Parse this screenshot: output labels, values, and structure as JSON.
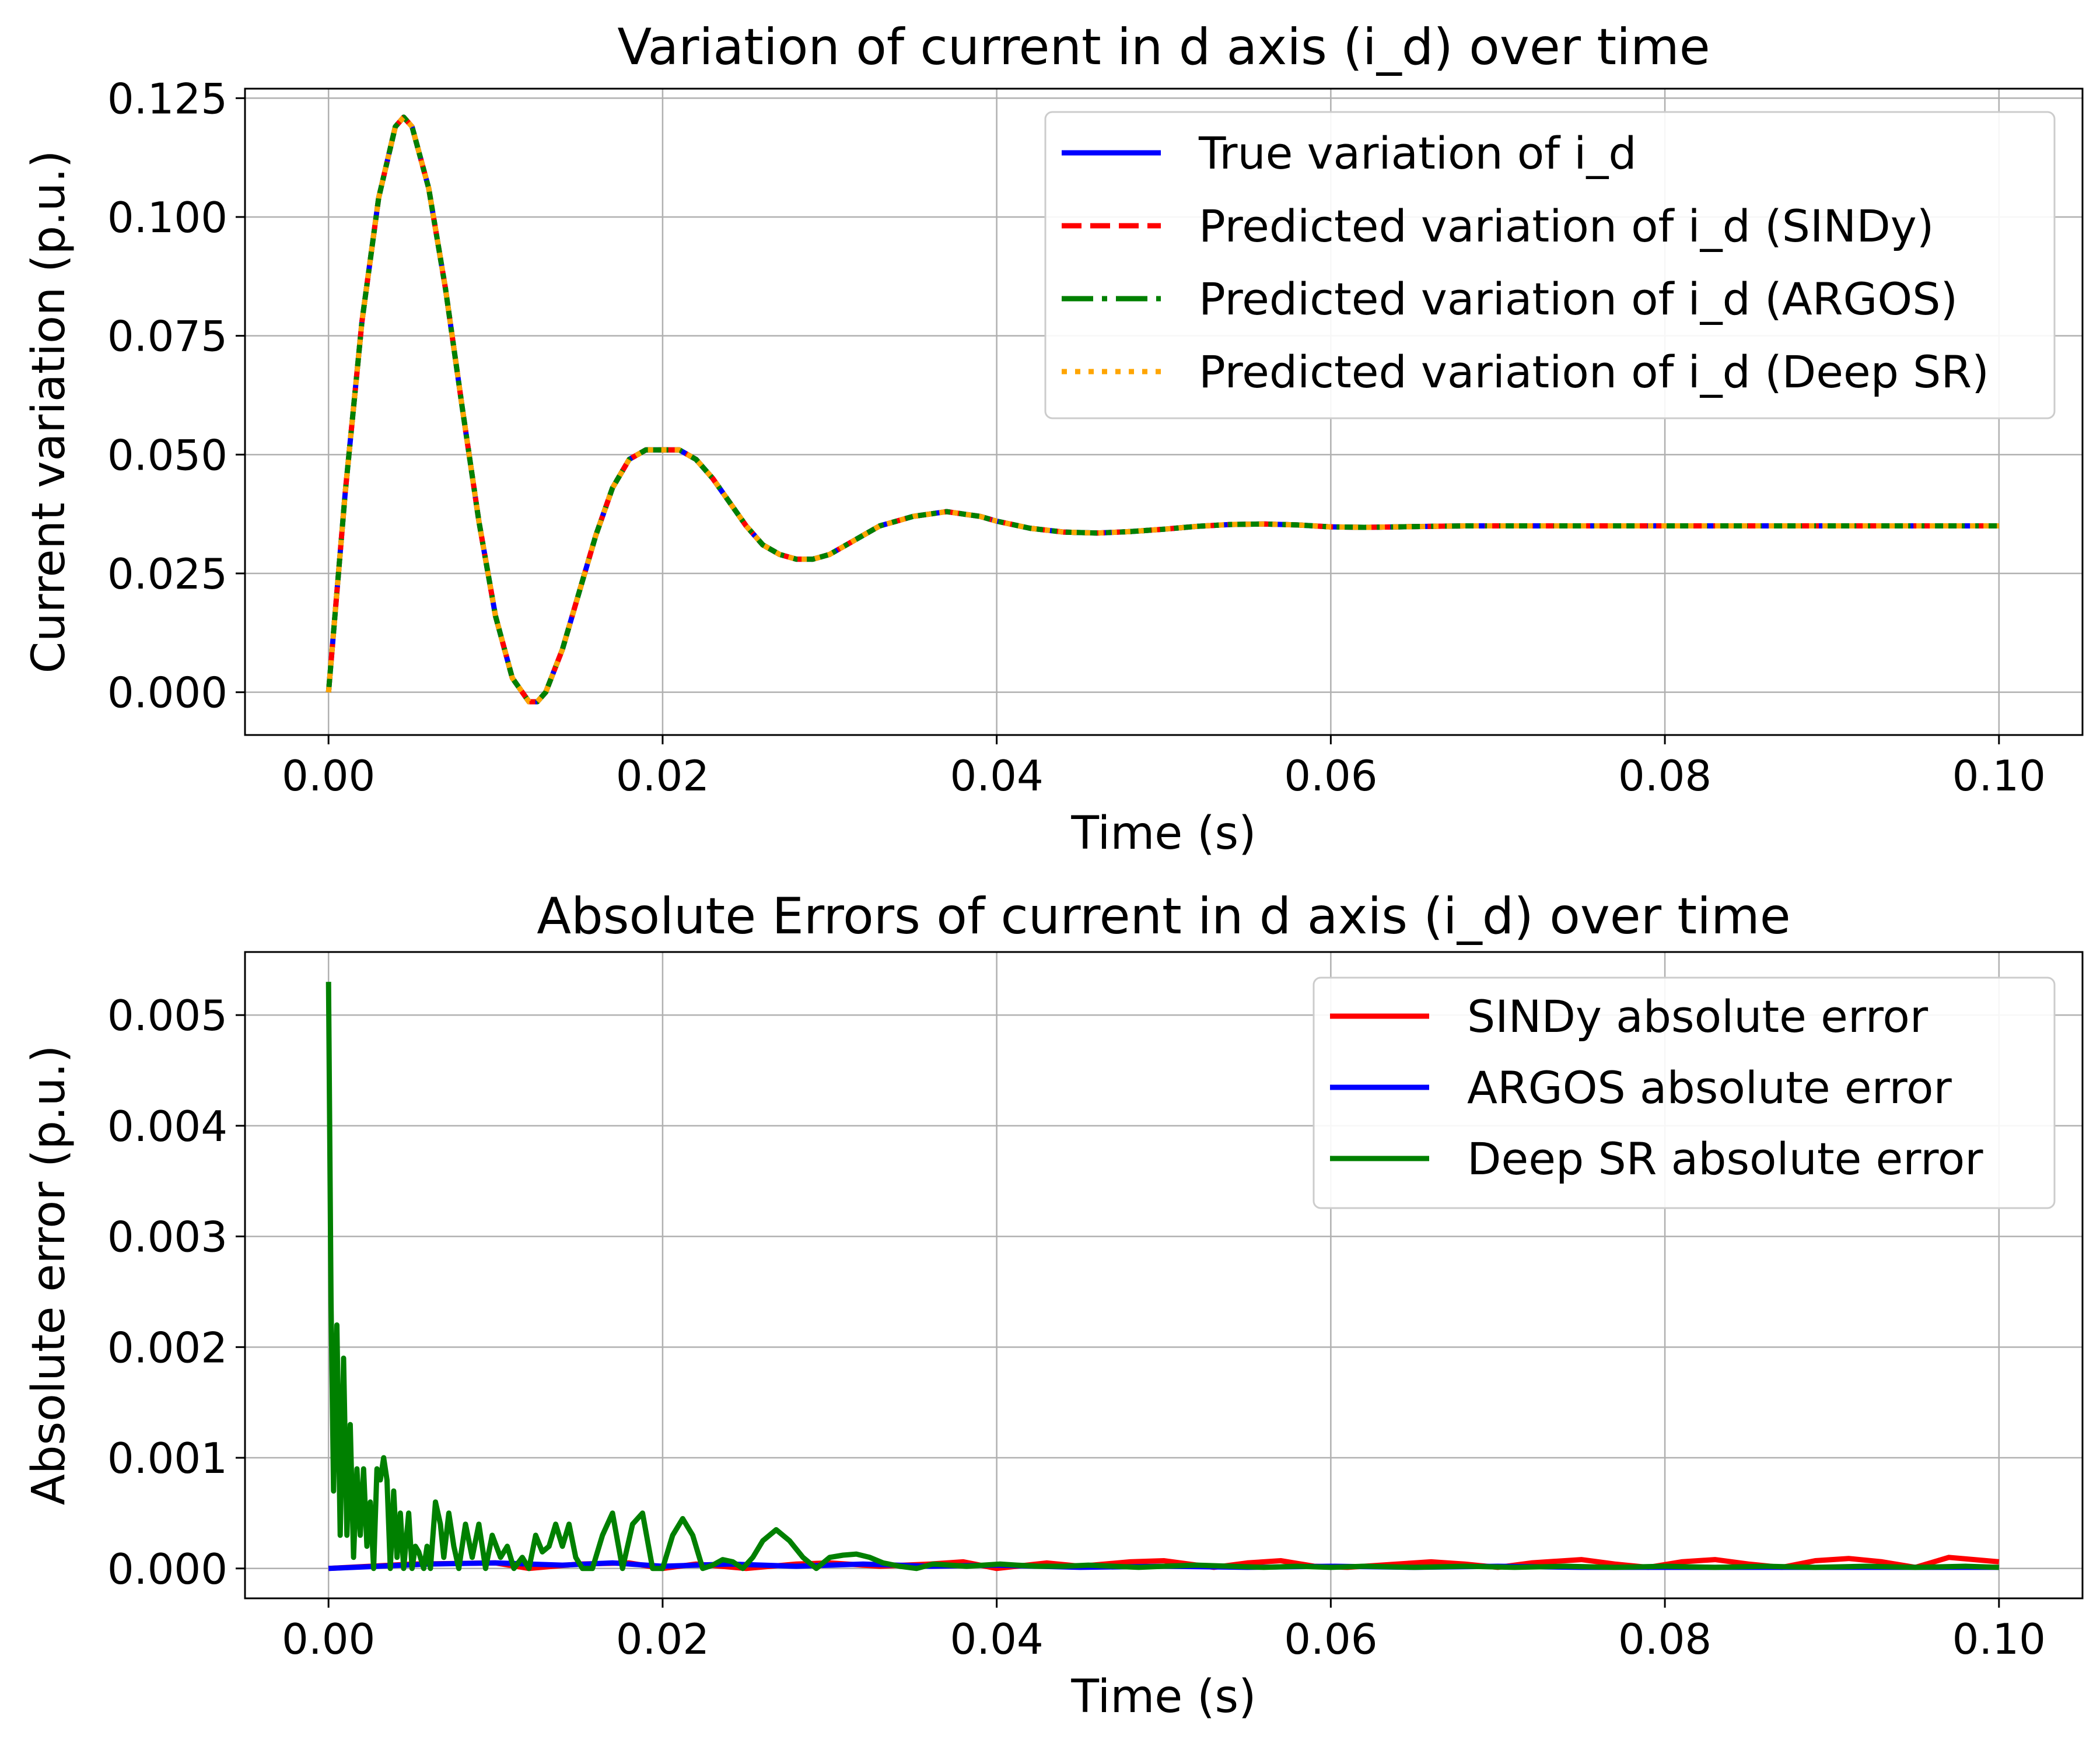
{
  "chart_data": [
    {
      "type": "line",
      "title": "Variation of current in d axis (i_d) over time",
      "xlabel": "Time (s)",
      "ylabel": "Current variation (p.u.)",
      "xlim": [
        -0.005,
        0.105
      ],
      "ylim": [
        -0.009,
        0.127
      ],
      "xticks": [
        "0.00",
        "0.02",
        "0.04",
        "0.06",
        "0.08",
        "0.10"
      ],
      "yticks": [
        "0.000",
        "0.025",
        "0.050",
        "0.075",
        "0.100",
        "0.125"
      ],
      "grid": true,
      "legend_position": "top-right",
      "series": [
        {
          "name": "True variation of i_d",
          "color": "#0000ff",
          "style": "solid",
          "x": [
            0,
            0.001,
            0.002,
            0.003,
            0.004,
            0.0045,
            0.005,
            0.006,
            0.007,
            0.008,
            0.009,
            0.01,
            0.011,
            0.012,
            0.0125,
            0.013,
            0.014,
            0.015,
            0.016,
            0.017,
            0.018,
            0.019,
            0.02,
            0.021,
            0.022,
            0.023,
            0.024,
            0.025,
            0.026,
            0.027,
            0.028,
            0.029,
            0.03,
            0.031,
            0.032,
            0.033,
            0.034,
            0.035,
            0.036,
            0.037,
            0.038,
            0.039,
            0.04,
            0.042,
            0.044,
            0.046,
            0.048,
            0.05,
            0.052,
            0.054,
            0.056,
            0.058,
            0.06,
            0.062,
            0.064,
            0.066,
            0.068,
            0.07,
            0.075,
            0.08,
            0.085,
            0.09,
            0.095,
            0.1
          ],
          "y": [
            0,
            0.042,
            0.078,
            0.104,
            0.119,
            0.121,
            0.119,
            0.106,
            0.085,
            0.06,
            0.036,
            0.016,
            0.003,
            -0.002,
            -0.002,
            0.0,
            0.009,
            0.021,
            0.033,
            0.043,
            0.049,
            0.051,
            0.051,
            0.051,
            0.049,
            0.045,
            0.04,
            0.035,
            0.031,
            0.029,
            0.028,
            0.028,
            0.029,
            0.031,
            0.033,
            0.035,
            0.036,
            0.037,
            0.0375,
            0.038,
            0.0375,
            0.037,
            0.036,
            0.0345,
            0.0337,
            0.0335,
            0.0338,
            0.0343,
            0.0349,
            0.0353,
            0.0354,
            0.0352,
            0.0348,
            0.0347,
            0.0348,
            0.0349,
            0.035,
            0.035,
            0.035,
            0.035,
            0.035,
            0.035,
            0.035,
            0.035
          ]
        },
        {
          "name": "Predicted variation of i_d (SINDy)",
          "color": "#ff0000",
          "style": "dashed"
        },
        {
          "name": "Predicted variation of i_d (ARGOS)",
          "color": "#008000",
          "style": "dashdot"
        },
        {
          "name": "Predicted variation of i_d (Deep SR)",
          "color": "#ffa500",
          "style": "dotted"
        }
      ]
    },
    {
      "type": "line",
      "title": "Absolute Errors of current in d axis (i_d) over time",
      "xlabel": "Time (s)",
      "ylabel": "Absolute error (p.u.)",
      "xlim": [
        -0.005,
        0.105
      ],
      "ylim": [
        -0.00027,
        0.00557
      ],
      "xticks": [
        "0.00",
        "0.02",
        "0.04",
        "0.06",
        "0.08",
        "0.10"
      ],
      "yticks": [
        "0.000",
        "0.001",
        "0.002",
        "0.003",
        "0.004",
        "0.005"
      ],
      "grid": true,
      "legend_position": "top-right",
      "series": [
        {
          "name": "SINDy absolute error",
          "color": "#ff0000",
          "x": [
            0,
            0.005,
            0.01,
            0.012,
            0.015,
            0.018,
            0.02,
            0.022,
            0.025,
            0.028,
            0.03,
            0.033,
            0.036,
            0.038,
            0.04,
            0.043,
            0.045,
            0.048,
            0.05,
            0.053,
            0.055,
            0.057,
            0.059,
            0.061,
            0.063,
            0.066,
            0.068,
            0.07,
            0.072,
            0.075,
            0.077,
            0.079,
            0.081,
            0.083,
            0.085,
            0.087,
            0.089,
            0.091,
            0.093,
            0.095,
            0.097,
            0.1
          ],
          "y": [
            0,
            4e-05,
            5e-05,
            0,
            4e-05,
            5e-05,
            0,
            4e-05,
            0,
            4e-05,
            5e-05,
            2e-05,
            4e-05,
            6e-05,
            0,
            5e-05,
            2e-05,
            6e-05,
            7e-05,
            1e-05,
            5e-05,
            7e-05,
            2e-05,
            1e-05,
            3e-05,
            6e-05,
            4e-05,
            1e-05,
            5e-05,
            8e-05,
            4e-05,
            1e-05,
            6e-05,
            8e-05,
            4e-05,
            1e-05,
            7e-05,
            9e-05,
            6e-05,
            1e-05,
            0.0001,
            6e-05
          ]
        },
        {
          "name": "ARGOS absolute error",
          "color": "#0000ff",
          "x": [
            0,
            0.003,
            0.006,
            0.01,
            0.014,
            0.017,
            0.02,
            0.024,
            0.028,
            0.032,
            0.036,
            0.04,
            0.045,
            0.05,
            0.055,
            0.06,
            0.065,
            0.07,
            0.075,
            0.08,
            0.085,
            0.09,
            0.095,
            0.1
          ],
          "y": [
            0,
            2e-05,
            4e-05,
            5e-05,
            3e-05,
            5e-05,
            2e-05,
            4e-05,
            2e-05,
            4e-05,
            2e-05,
            3e-05,
            1e-05,
            2e-05,
            1e-05,
            2e-05,
            1e-05,
            2e-05,
            1e-05,
            1e-05,
            1e-05,
            1e-05,
            1e-05,
            1e-05
          ]
        },
        {
          "name": "Deep SR absolute error",
          "color": "#008000",
          "x": [
            0,
            0.00015,
            0.0003,
            0.0005,
            0.0007,
            0.0009,
            0.0011,
            0.0013,
            0.0015,
            0.0017,
            0.0019,
            0.0021,
            0.0023,
            0.0025,
            0.0027,
            0.0029,
            0.0031,
            0.0033,
            0.0035,
            0.0037,
            0.0039,
            0.0041,
            0.0043,
            0.0045,
            0.0048,
            0.005,
            0.0052,
            0.0054,
            0.0057,
            0.0059,
            0.0061,
            0.0064,
            0.0067,
            0.0069,
            0.0072,
            0.0075,
            0.0078,
            0.0082,
            0.0086,
            0.009,
            0.0094,
            0.0098,
            0.0103,
            0.0107,
            0.0111,
            0.0116,
            0.012,
            0.0124,
            0.0128,
            0.0132,
            0.0136,
            0.014,
            0.0144,
            0.0148,
            0.0152,
            0.0158,
            0.0164,
            0.017,
            0.0176,
            0.0182,
            0.0188,
            0.0194,
            0.02,
            0.0206,
            0.0212,
            0.0218,
            0.0224,
            0.023,
            0.0236,
            0.0242,
            0.0248,
            0.0254,
            0.026,
            0.0268,
            0.0276,
            0.0284,
            0.0292,
            0.03,
            0.0308,
            0.0316,
            0.0324,
            0.0332,
            0.0342,
            0.0352,
            0.0362,
            0.0372,
            0.0382,
            0.0392,
            0.0402,
            0.0412,
            0.0425,
            0.044,
            0.0455,
            0.047,
            0.0485,
            0.05,
            0.052,
            0.054,
            0.056,
            0.058,
            0.06,
            0.062,
            0.065,
            0.068,
            0.071,
            0.074,
            0.077,
            0.08,
            0.083,
            0.086,
            0.089,
            0.092,
            0.095,
            0.098,
            0.1
          ],
          "y": [
            0.0053,
            0.0024,
            0.0007,
            0.0022,
            0.0003,
            0.0019,
            0.0003,
            0.0013,
            0.0001,
            0.0009,
            0.0003,
            0.0009,
            0.0002,
            0.0006,
            0.0,
            0.0009,
            0.0008,
            0.001,
            0.0008,
            0.0,
            0.0007,
            0.0001,
            0.0005,
            0.0,
            0.0005,
            0.0,
            0.0002,
            0.00015,
            0.0,
            0.0002,
            0.0,
            0.0006,
            0.0004,
            0.0001,
            0.0005,
            0.0002,
            0.0,
            0.0004,
            0.0001,
            0.0004,
            0.0,
            0.0003,
            0.0001,
            0.0002,
            0.0,
            0.0001,
            0.0,
            0.0003,
            0.00015,
            0.0002,
            0.0004,
            0.0002,
            0.0004,
            0.0001,
            0.0,
            0.0,
            0.0003,
            0.0005,
            0.0,
            0.0004,
            0.0005,
            0.0,
            0.0,
            0.0003,
            0.00045,
            0.0003,
            0.0,
            3e-05,
            8e-05,
            6e-05,
            0.0,
            0.0001,
            0.00025,
            0.00035,
            0.00025,
            0.0001,
            0.0,
            0.0001,
            0.00012,
            0.00013,
            0.0001,
            5e-05,
            2e-05,
            0.0,
            4e-05,
            3e-05,
            2e-05,
            3e-05,
            4e-05,
            3e-05,
            2e-05,
            2e-05,
            3e-05,
            2e-05,
            1e-05,
            2e-05,
            3e-05,
            2e-05,
            1e-05,
            2e-05,
            1e-05,
            2e-05,
            1e-05,
            2e-05,
            1e-05,
            2e-05,
            1e-05,
            2e-05,
            1e-05,
            2e-05,
            1e-05,
            2e-05,
            1e-05,
            2e-05,
            1e-05
          ]
        }
      ]
    }
  ]
}
